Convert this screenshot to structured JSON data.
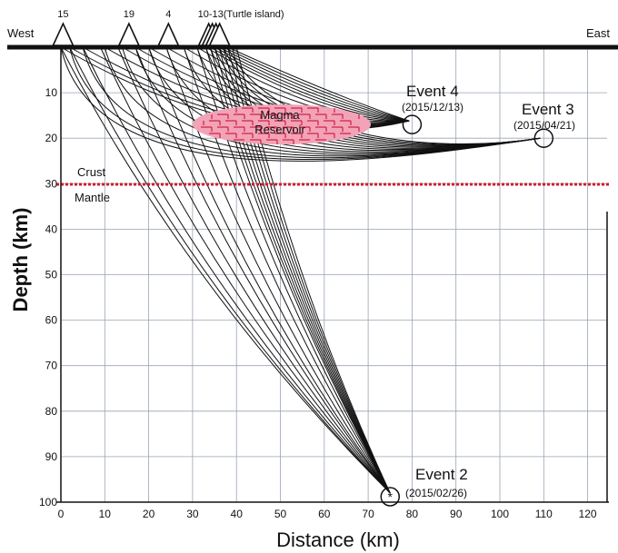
{
  "figure": {
    "west_label": "West",
    "east_label": "East",
    "x_label": "Distance  (km)",
    "y_label": "Depth (km)",
    "crust_label": "Crust",
    "mantle_label": "Mantle",
    "reservoir_line1": "Magma",
    "reservoir_line2": "Reservoir",
    "colors": {
      "moho": "#cc1f2b",
      "reservoir": "#f2a3b8",
      "reservoir_brick": "#d11e3c",
      "axis": "#111111"
    }
  },
  "stations": [
    {
      "label": "15",
      "distance": 0.5
    },
    {
      "label": "19",
      "distance": 15.5
    },
    {
      "label": "4",
      "distance": 24.5
    },
    {
      "label": "10-13(Turtle island)",
      "distance": 34.5,
      "cluster": true
    }
  ],
  "events": [
    {
      "name": "Event 4",
      "date": "(2015/12/13)",
      "distance": 80,
      "depth": 17
    },
    {
      "name": "Event 3",
      "date": "(2015/04/21)",
      "distance": 110,
      "depth": 20
    },
    {
      "name": "Event 2",
      "date": "(2015/02/26)",
      "distance": 75,
      "depth": 98
    }
  ],
  "chart_data": {
    "type": "diagram",
    "x_ticks": [
      "0",
      "10",
      "20",
      "30",
      "40",
      "50",
      "60",
      "70",
      "80",
      "90",
      "100",
      "110",
      "120"
    ],
    "y_ticks": [
      "10",
      "20",
      "30",
      "40",
      "50",
      "60",
      "70",
      "80",
      "90",
      "100"
    ],
    "xlim": [
      0,
      125
    ],
    "ylim": [
      0,
      100
    ],
    "moho_depth": 30,
    "station_distances": [
      0,
      2,
      5,
      10,
      14,
      17,
      20,
      24,
      28,
      31,
      33,
      34,
      35,
      36,
      37,
      38
    ],
    "rays_event2_receivers": [
      0,
      2,
      5,
      9,
      13,
      17,
      20,
      24,
      28,
      31,
      33,
      34,
      35,
      36,
      37,
      38,
      39,
      40
    ]
  }
}
